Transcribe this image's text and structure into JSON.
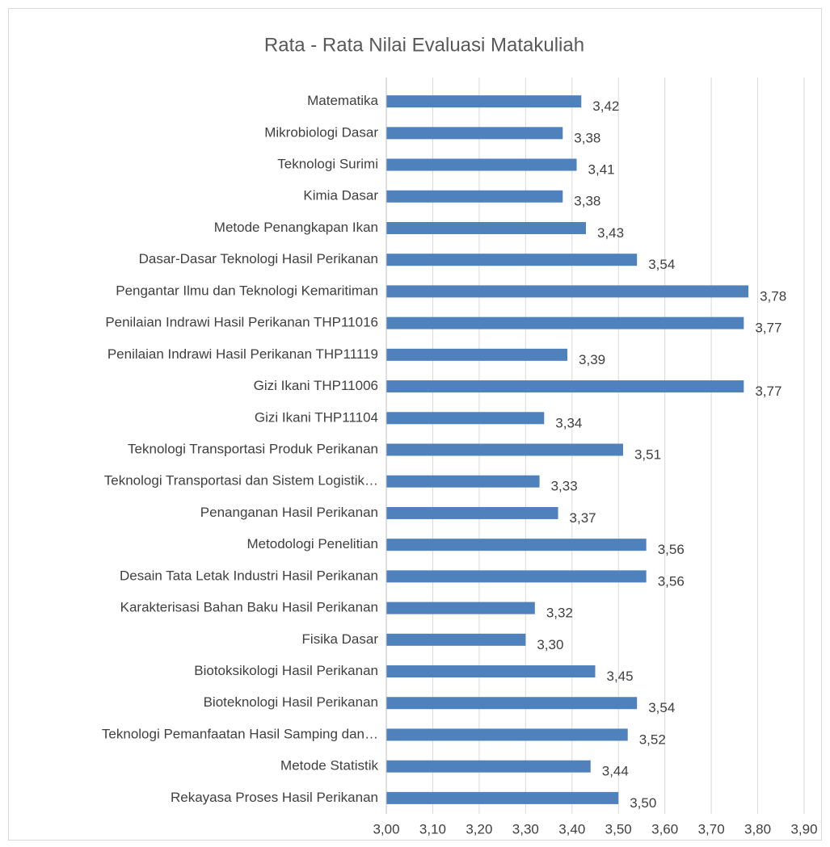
{
  "chart_data": {
    "type": "barh",
    "title": "Rata - Rata Nilai Evaluasi Matakuliah",
    "categories": [
      "Matematika",
      "Mikrobiologi Dasar",
      "Teknologi Surimi",
      "Kimia Dasar",
      "Metode Penangkapan Ikan",
      "Dasar-Dasar Teknologi Hasil Perikanan",
      "Pengantar Ilmu dan Teknologi Kemaritiman",
      "Penilaian Indrawi Hasil Perikanan THP11016",
      "Penilaian Indrawi Hasil Perikanan THP11119",
      "Gizi Ikani THP11006",
      "Gizi Ikani THP11104",
      "Teknologi Transportasi Produk Perikanan",
      "Teknologi Transportasi dan Sistem Logistik…",
      "Penanganan Hasil Perikanan",
      "Metodologi Penelitian",
      "Desain Tata Letak Industri Hasil Perikanan",
      "Karakterisasi Bahan Baku Hasil Perikanan",
      "Fisika Dasar",
      "Biotoksikologi Hasil Perikanan",
      "Bioteknologi Hasil Perikanan",
      "Teknologi Pemanfaatan Hasil Samping dan…",
      "Metode Statistik",
      "Rekayasa Proses Hasil Perikanan"
    ],
    "values": [
      3.42,
      3.38,
      3.41,
      3.38,
      3.43,
      3.54,
      3.78,
      3.77,
      3.39,
      3.77,
      3.34,
      3.51,
      3.33,
      3.37,
      3.56,
      3.56,
      3.32,
      3.3,
      3.45,
      3.54,
      3.52,
      3.44,
      3.5
    ],
    "value_labels": [
      "3,42",
      "3,38",
      "3,41",
      "3,38",
      "3,43",
      "3,54",
      "3,78",
      "3,77",
      "3,39",
      "3,77",
      "3,34",
      "3,51",
      "3,33",
      "3,37",
      "3,56",
      "3,56",
      "3,32",
      "3,30",
      "3,45",
      "3,54",
      "3,52",
      "3,44",
      "3,50"
    ],
    "color": "#4f81bd",
    "xlim": [
      3.0,
      3.9
    ],
    "xticks": [
      {
        "value": 3.0,
        "label": "3,00"
      },
      {
        "value": 3.1,
        "label": "3,10"
      },
      {
        "value": 3.2,
        "label": "3,20"
      },
      {
        "value": 3.3,
        "label": "3,30"
      },
      {
        "value": 3.4,
        "label": "3,40"
      },
      {
        "value": 3.5,
        "label": "3,50"
      },
      {
        "value": 3.6,
        "label": "3,60"
      },
      {
        "value": 3.7,
        "label": "3,70"
      },
      {
        "value": 3.8,
        "label": "3,80"
      },
      {
        "value": 3.9,
        "label": "3,90"
      }
    ],
    "grid": true
  }
}
